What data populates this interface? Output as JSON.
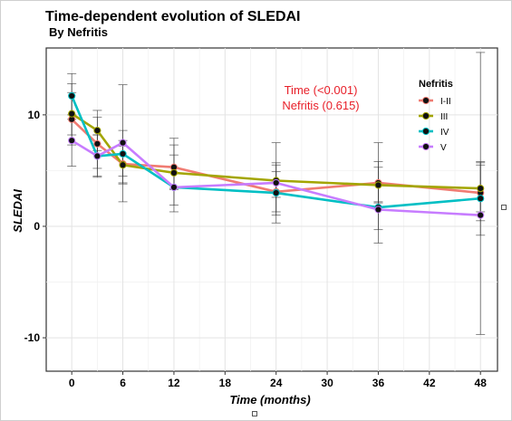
{
  "chart_data": {
    "type": "line",
    "title": "Time-dependent evolution of SLEDAI",
    "subtitle": "By Nefritis",
    "xlabel": "Time (months)",
    "ylabel": "SLEDAI",
    "x_ticks": [
      0,
      6,
      12,
      18,
      24,
      30,
      36,
      42,
      48
    ],
    "y_ticks": [
      -10,
      0,
      10
    ],
    "xlim": [
      -3,
      50
    ],
    "ylim": [
      -13,
      16
    ],
    "grid": true,
    "legend": {
      "title": "Nefritis",
      "position": "top-right"
    },
    "annotations": [
      "Time (<0.001)",
      "Nefritis (0.615)"
    ],
    "annotation_color": "#e8202a",
    "series": [
      {
        "name": "I-II",
        "color": "#f07b72",
        "points": [
          {
            "x": 0,
            "y": 9.6,
            "lo": 7.3,
            "hi": 12.8
          },
          {
            "x": 3,
            "y": 7.4,
            "lo": 5.2,
            "hi": 9.8
          },
          {
            "x": 6,
            "y": 5.6,
            "lo": 3.8,
            "hi": 7.7
          },
          {
            "x": 12,
            "y": 5.3,
            "lo": 3.4,
            "hi": 7.3
          },
          {
            "x": 24,
            "y": 3.1,
            "lo": 1.0,
            "hi": 5.5
          },
          {
            "x": 36,
            "y": 3.9,
            "lo": 2.1,
            "hi": 5.8
          },
          {
            "x": 48,
            "y": 3.0,
            "lo": 0.5,
            "hi": 5.7
          }
        ]
      },
      {
        "name": "III",
        "color": "#a3a500",
        "points": [
          {
            "x": 0,
            "y": 10.1,
            "lo": 8.2,
            "hi": 12.0
          },
          {
            "x": 3,
            "y": 8.6,
            "lo": 6.8,
            "hi": 10.4
          },
          {
            "x": 6,
            "y": 5.5,
            "lo": 3.9,
            "hi": 7.2
          },
          {
            "x": 12,
            "y": 4.8,
            "lo": 3.3,
            "hi": 6.4
          },
          {
            "x": 24,
            "y": 4.1,
            "lo": 2.6,
            "hi": 5.7
          },
          {
            "x": 36,
            "y": 3.7,
            "lo": 2.2,
            "hi": 5.3
          },
          {
            "x": 48,
            "y": 3.4,
            "lo": 1.3,
            "hi": 5.5
          }
        ]
      },
      {
        "name": "IV",
        "color": "#00bfc4",
        "points": [
          {
            "x": 0,
            "y": 11.7,
            "lo": 9.6,
            "hi": 13.7
          },
          {
            "x": 3,
            "y": 6.3,
            "lo": 4.5,
            "hi": 8.2
          },
          {
            "x": 6,
            "y": 6.5,
            "lo": 4.5,
            "hi": 8.6
          },
          {
            "x": 12,
            "y": 3.5,
            "lo": 1.9,
            "hi": 5.3
          },
          {
            "x": 24,
            "y": 3.0,
            "lo": 1.3,
            "hi": 4.9
          },
          {
            "x": 36,
            "y": 1.7,
            "lo": -0.3,
            "hi": 3.8
          },
          {
            "x": 48,
            "y": 2.5,
            "lo": -0.8,
            "hi": 5.8
          }
        ]
      },
      {
        "name": "V",
        "color": "#c77cff",
        "points": [
          {
            "x": 0,
            "y": 7.7,
            "lo": 5.4,
            "hi": 10.0
          },
          {
            "x": 3,
            "y": 6.3,
            "lo": 4.4,
            "hi": 8.2
          },
          {
            "x": 6,
            "y": 7.5,
            "lo": 2.2,
            "hi": 12.7
          },
          {
            "x": 12,
            "y": 3.5,
            "lo": 1.3,
            "hi": 7.9
          },
          {
            "x": 24,
            "y": 3.9,
            "lo": 0.3,
            "hi": 7.5
          },
          {
            "x": 36,
            "y": 1.5,
            "lo": -1.5,
            "hi": 7.5
          },
          {
            "x": 48,
            "y": 1.0,
            "lo": -9.7,
            "hi": 15.6
          }
        ]
      }
    ]
  }
}
